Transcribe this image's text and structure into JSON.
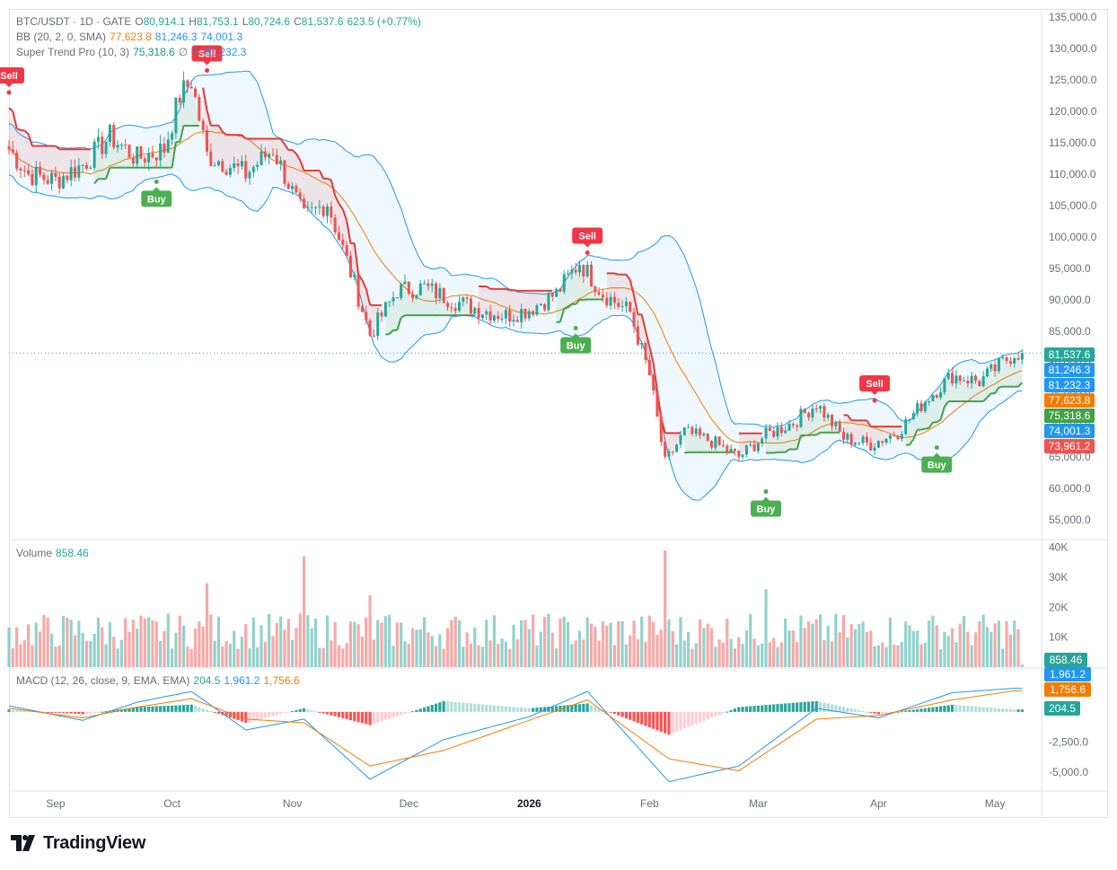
{
  "legend": {
    "symbol": "BTC/USDT · 1D · GATE",
    "o_label": "O",
    "o_value": "80,914.1",
    "h_label": "H",
    "h_value": "81,753.1",
    "l_label": "L",
    "l_value": "80,724.6",
    "c_label": "C",
    "c_value": "81,537.6",
    "change": "623.5 (+0.77%)",
    "bb_label": "BB (20, 2, 0, SMA)",
    "bb_basis": "77,623.8",
    "bb_upper": "81,246.3",
    "bb_lower": "74,001.3",
    "st_label": "Super Trend Pro (10, 3)",
    "st_value": "75,318.6",
    "st_empty1": "∅",
    "st_empty2": "∅",
    "st_value2": "81,232.3",
    "volume_label": "Volume",
    "volume_value": "858.46",
    "macd_label": "MACD (12, 26, close, 9, EMA, EMA)",
    "macd_hist": "204.5",
    "macd_line": "1,961.2",
    "macd_signal": "1,756.6"
  },
  "colors": {
    "up": "#26a69a",
    "down": "#ef5350",
    "bb_basis": "#f57c00",
    "bb_band": "#2196f3",
    "st_up": "#43a047",
    "st_down": "#e53935",
    "macd_line": "#2196f3",
    "signal_line": "#f57c00"
  },
  "chart_data": [
    {
      "type": "candlestick",
      "panel": "price",
      "symbol": "BTC/USDT",
      "interval": "1D",
      "exchange": "GATE",
      "ylim": [
        52000,
        136000
      ],
      "y_ticks": [
        "135,000.0",
        "130,000.0",
        "125,000.0",
        "120,000.0",
        "115,000.0",
        "110,000.0",
        "105,000.0",
        "100,000.0",
        "95,000.0",
        "90,000.0",
        "85,000.0",
        "80,000.0",
        "75,000.0",
        "70,000.0",
        "65,000.0",
        "60,000.0",
        "55,000.0"
      ],
      "x_ticks": [
        "Sep",
        "Oct",
        "Nov",
        "Dec",
        "2026",
        "Feb",
        "Mar",
        "Apr",
        "May"
      ],
      "close_series": [
        {
          "x": "Aug 20",
          "y": 114000
        },
        {
          "x": "Aug 25",
          "y": 110000
        },
        {
          "x": "Sep 1",
          "y": 109000
        },
        {
          "x": "Sep 8",
          "y": 111500
        },
        {
          "x": "Sep 15",
          "y": 116000
        },
        {
          "x": "Sep 22",
          "y": 112500
        },
        {
          "x": "Sep 29",
          "y": 114000
        },
        {
          "x": "Oct 3",
          "y": 122500
        },
        {
          "x": "Oct 6",
          "y": 124800
        },
        {
          "x": "Oct 10",
          "y": 113000
        },
        {
          "x": "Oct 14",
          "y": 112000
        },
        {
          "x": "Oct 20",
          "y": 110000
        },
        {
          "x": "Oct 27",
          "y": 114000
        },
        {
          "x": "Nov 4",
          "y": 103000
        },
        {
          "x": "Nov 10",
          "y": 105500
        },
        {
          "x": "Nov 17",
          "y": 92500
        },
        {
          "x": "Nov 21",
          "y": 84500
        },
        {
          "x": "Nov 28",
          "y": 91500
        },
        {
          "x": "Dec 5",
          "y": 92000
        },
        {
          "x": "Dec 12",
          "y": 90000
        },
        {
          "x": "Dec 19",
          "y": 88500
        },
        {
          "x": "Dec 26",
          "y": 87500
        },
        {
          "x": "Jan 1",
          "y": 88500
        },
        {
          "x": "Jan 8",
          "y": 91000
        },
        {
          "x": "Jan 14",
          "y": 96000
        },
        {
          "x": "Jan 20",
          "y": 91000
        },
        {
          "x": "Jan 27",
          "y": 88000
        },
        {
          "x": "Feb 1",
          "y": 78000
        },
        {
          "x": "Feb 5",
          "y": 64000
        },
        {
          "x": "Feb 10",
          "y": 69000
        },
        {
          "x": "Feb 17",
          "y": 67500
        },
        {
          "x": "Feb 24",
          "y": 65000
        },
        {
          "x": "Mar 3",
          "y": 68500
        },
        {
          "x": "Mar 10",
          "y": 70500
        },
        {
          "x": "Mar 16",
          "y": 73500
        },
        {
          "x": "Mar 23",
          "y": 68000
        },
        {
          "x": "Mar 30",
          "y": 67000
        },
        {
          "x": "Apr 6",
          "y": 69000
        },
        {
          "x": "Apr 13",
          "y": 74000
        },
        {
          "x": "Apr 20",
          "y": 78000
        },
        {
          "x": "Apr 27",
          "y": 77000
        },
        {
          "x": "May 1",
          "y": 79000
        },
        {
          "x": "May 6",
          "y": 81537.6
        }
      ],
      "bollinger": {
        "period": 20,
        "mult": 2,
        "last": {
          "basis": 77623.8,
          "upper": 81246.3,
          "lower": 74001.3
        }
      },
      "supertrend": {
        "period": 10,
        "mult": 3,
        "last": 75318.6,
        "last_upper": 81232.3
      },
      "signals": [
        {
          "label": "Sell",
          "x": "Aug 20",
          "price": 123000
        },
        {
          "label": "Buy",
          "x": "Sep 27",
          "price": 108800
        },
        {
          "label": "Sell",
          "x": "Oct 10",
          "price": 126500
        },
        {
          "label": "Buy",
          "x": "Jan 13",
          "price": 85500
        },
        {
          "label": "Sell",
          "x": "Jan 16",
          "price": 97500
        },
        {
          "label": "Buy",
          "x": "Mar 3",
          "price": 59500
        },
        {
          "label": "Sell",
          "x": "Mar 31",
          "price": 74000
        },
        {
          "label": "Buy",
          "x": "Apr 16",
          "price": 66500
        }
      ],
      "last_price_tags": [
        "81,537.6",
        "81,246.3",
        "81,232.3",
        "77,623.8",
        "75,318.6",
        "74,001.3",
        "73,961.2"
      ]
    },
    {
      "type": "bar",
      "panel": "volume",
      "ylim": [
        0,
        42000
      ],
      "y_ticks": [
        "40K",
        "30K",
        "20K",
        "10K"
      ],
      "last": 858.46,
      "last_label": "858.46",
      "peaks": [
        {
          "x": "Oct 10",
          "y": 28000
        },
        {
          "x": "Nov 4",
          "y": 37000
        },
        {
          "x": "Nov 21",
          "y": 24000
        },
        {
          "x": "Feb 5",
          "y": 39000
        },
        {
          "x": "Mar 3",
          "y": 26000
        }
      ]
    },
    {
      "type": "line",
      "panel": "macd",
      "ylim": [
        -6500,
        3500
      ],
      "y_ticks": [
        "-2,500.0",
        "-5,000.0"
      ],
      "series": [
        {
          "name": "MACD",
          "points": [
            {
              "x": "Aug 20",
              "y": 500
            },
            {
              "x": "Sep 8",
              "y": -700
            },
            {
              "x": "Sep 22",
              "y": 800
            },
            {
              "x": "Oct 6",
              "y": 1700
            },
            {
              "x": "Oct 20",
              "y": -1500
            },
            {
              "x": "Nov 4",
              "y": -600
            },
            {
              "x": "Nov 21",
              "y": -5600
            },
            {
              "x": "Dec 10",
              "y": -2300
            },
            {
              "x": "Jan 1",
              "y": -400
            },
            {
              "x": "Jan 16",
              "y": 1700
            },
            {
              "x": "Feb 6",
              "y": -5800
            },
            {
              "x": "Feb 24",
              "y": -4500
            },
            {
              "x": "Mar 16",
              "y": 300
            },
            {
              "x": "Apr 1",
              "y": -500
            },
            {
              "x": "Apr 20",
              "y": 1600
            },
            {
              "x": "May 6",
              "y": 1961.2
            }
          ]
        },
        {
          "name": "Signal",
          "points": [
            {
              "x": "Aug 20",
              "y": 300
            },
            {
              "x": "Sep 8",
              "y": -500
            },
            {
              "x": "Sep 22",
              "y": 400
            },
            {
              "x": "Oct 6",
              "y": 1100
            },
            {
              "x": "Oct 20",
              "y": -600
            },
            {
              "x": "Nov 4",
              "y": -900
            },
            {
              "x": "Nov 21",
              "y": -4500
            },
            {
              "x": "Dec 10",
              "y": -3200
            },
            {
              "x": "Jan 1",
              "y": -700
            },
            {
              "x": "Jan 16",
              "y": 1000
            },
            {
              "x": "Feb 6",
              "y": -3900
            },
            {
              "x": "Feb 24",
              "y": -4900
            },
            {
              "x": "Mar 16",
              "y": -600
            },
            {
              "x": "Apr 1",
              "y": -300
            },
            {
              "x": "Apr 20",
              "y": 1000
            },
            {
              "x": "May 6",
              "y": 1756.6
            }
          ]
        }
      ],
      "last_tags": [
        "1,961.2",
        "1,756.6",
        "204.5"
      ]
    }
  ],
  "brand": {
    "name": "TradingView"
  }
}
